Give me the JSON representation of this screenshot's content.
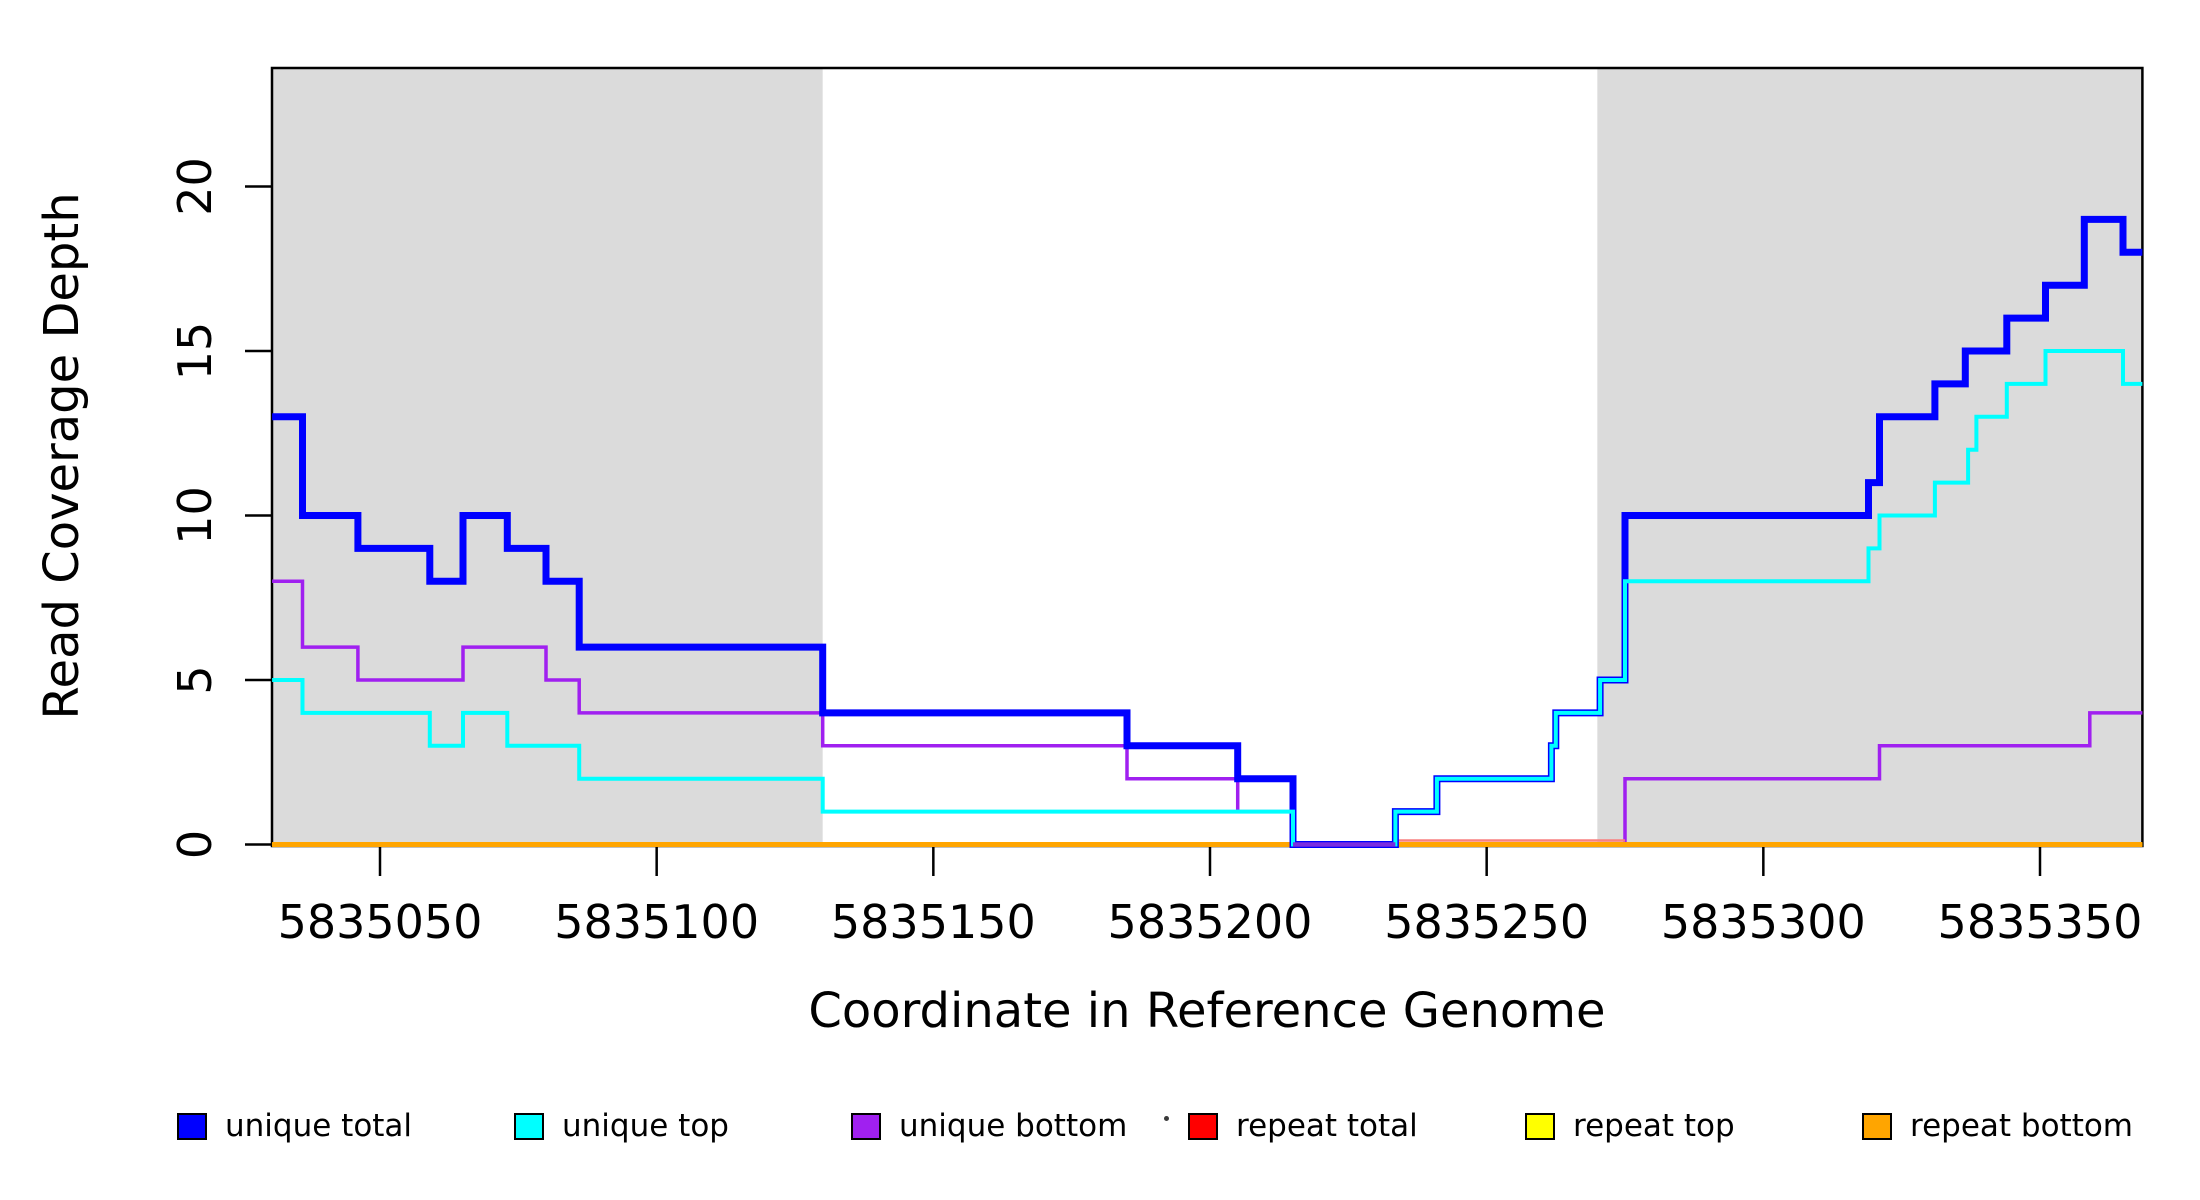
{
  "figure": {
    "x_axis_title": "Coordinate in Reference Genome",
    "y_axis_title": "Read Coverage Depth"
  },
  "chart_data": {
    "type": "line",
    "subtype": "step-post",
    "title": "",
    "xlabel": "Coordinate in Reference Genome",
    "ylabel": "Read Coverage Depth",
    "xlim": [
      5835030.5,
      5835368.5
    ],
    "ylim": [
      0,
      23.6
    ],
    "grid": "off",
    "legend_position": "bottom",
    "xticks": [
      5835050,
      5835100,
      5835150,
      5835200,
      5835250,
      5835300,
      5835350
    ],
    "yticks": [
      0,
      5,
      10,
      15,
      20
    ],
    "shaded_regions": [
      {
        "name": "left-gray-band",
        "x0": 5835030.5,
        "x1": 5835130,
        "color": "#DBDBDB"
      },
      {
        "name": "right-gray-band",
        "x0": 5835270,
        "x1": 5835368.5,
        "color": "#DBDBDB"
      }
    ],
    "series": [
      {
        "name": "repeat total",
        "color": "#FF0000",
        "width": 3,
        "points": [
          [
            5835030.5,
            0
          ],
          [
            5835368.5,
            0
          ]
        ]
      },
      {
        "name": "repeat top",
        "color": "#FFFF00",
        "width": 3,
        "points": [
          [
            5835030.5,
            0
          ],
          [
            5835368.5,
            0
          ]
        ]
      },
      {
        "name": "unique bottom",
        "color": "#A020F0",
        "width": 3.5,
        "points": [
          [
            5835030.5,
            8
          ],
          [
            5835036,
            6
          ],
          [
            5835046,
            5
          ],
          [
            5835065,
            6
          ],
          [
            5835080,
            5
          ],
          [
            5835086,
            4
          ],
          [
            5835130,
            3
          ],
          [
            5835185,
            2
          ],
          [
            5835205,
            1
          ],
          [
            5835215,
            0
          ],
          [
            5835275,
            2
          ],
          [
            5835321,
            3
          ],
          [
            5835359,
            4
          ],
          [
            5835368.5,
            4
          ]
        ]
      },
      {
        "name": "repeat bottom",
        "color": "#FFA500",
        "width": 5,
        "points": [
          [
            5835030.5,
            0
          ],
          [
            5835368.5,
            0
          ]
        ]
      },
      {
        "name": "unique total",
        "color": "#0000FF",
        "width": 7,
        "points": [
          [
            5835030.5,
            13
          ],
          [
            5835036,
            10
          ],
          [
            5835046,
            9
          ],
          [
            5835059,
            8
          ],
          [
            5835065,
            10
          ],
          [
            5835073,
            9
          ],
          [
            5835080,
            8
          ],
          [
            5835086,
            6
          ],
          [
            5835130,
            4
          ],
          [
            5835185,
            3
          ],
          [
            5835205,
            2
          ],
          [
            5835215,
            0
          ],
          [
            5835233.5,
            1
          ],
          [
            5835241,
            2
          ],
          [
            5835261.7,
            3
          ],
          [
            5835262.5,
            4
          ],
          [
            5835270.5,
            5
          ],
          [
            5835275,
            10
          ],
          [
            5835319,
            11
          ],
          [
            5835321,
            13
          ],
          [
            5835331,
            14
          ],
          [
            5835336.5,
            15
          ],
          [
            5835344,
            16
          ],
          [
            5835351,
            17
          ],
          [
            5835358,
            19
          ],
          [
            5835365,
            18
          ],
          [
            5835368.5,
            18
          ]
        ]
      },
      {
        "name": "unique top",
        "color": "#00FFFF",
        "width": 4,
        "points": [
          [
            5835030.5,
            5
          ],
          [
            5835036,
            4
          ],
          [
            5835059,
            3
          ],
          [
            5835065,
            4
          ],
          [
            5835073,
            3
          ],
          [
            5835086,
            2
          ],
          [
            5835130,
            1
          ],
          [
            5835215,
            0
          ],
          [
            5835233.5,
            1
          ],
          [
            5835241,
            2
          ],
          [
            5835261.7,
            3
          ],
          [
            5835262.5,
            4
          ],
          [
            5835270.5,
            5
          ],
          [
            5835275,
            8
          ],
          [
            5835319,
            9
          ],
          [
            5835321,
            10
          ],
          [
            5835331,
            11
          ],
          [
            5835337,
            12
          ],
          [
            5835338.5,
            13
          ],
          [
            5835344,
            14
          ],
          [
            5835351,
            15
          ],
          [
            5835365,
            14
          ],
          [
            5835368.5,
            14
          ]
        ]
      }
    ],
    "baseline_overlays": [
      {
        "name": "violet-zero-overlap",
        "x0": 5835215,
        "x1": 5835233.5,
        "y": 0,
        "color": "#7A2EDF",
        "width": 4.5,
        "dy": 0
      },
      {
        "name": "red-fringe-zero",
        "x0": 5835233.5,
        "x1": 5835275,
        "y": 0,
        "color": "#F98080",
        "width": 2.5,
        "dy": -4
      }
    ]
  },
  "legend": {
    "entries": [
      {
        "label": "unique total",
        "color": "#0000FF"
      },
      {
        "label": "unique top",
        "color": "#00FFFF"
      },
      {
        "label": "unique bottom",
        "color": "#A020F0"
      },
      {
        "label": "repeat total",
        "color": "#FF0000"
      },
      {
        "label": "repeat top",
        "color": "#FFFF00"
      },
      {
        "label": "repeat bottom",
        "color": "#FFA500"
      }
    ]
  },
  "style": {
    "plot_bg": "#FFFFFF",
    "box_color": "#000000",
    "tick_color": "#000000",
    "text_color": "#000000"
  }
}
